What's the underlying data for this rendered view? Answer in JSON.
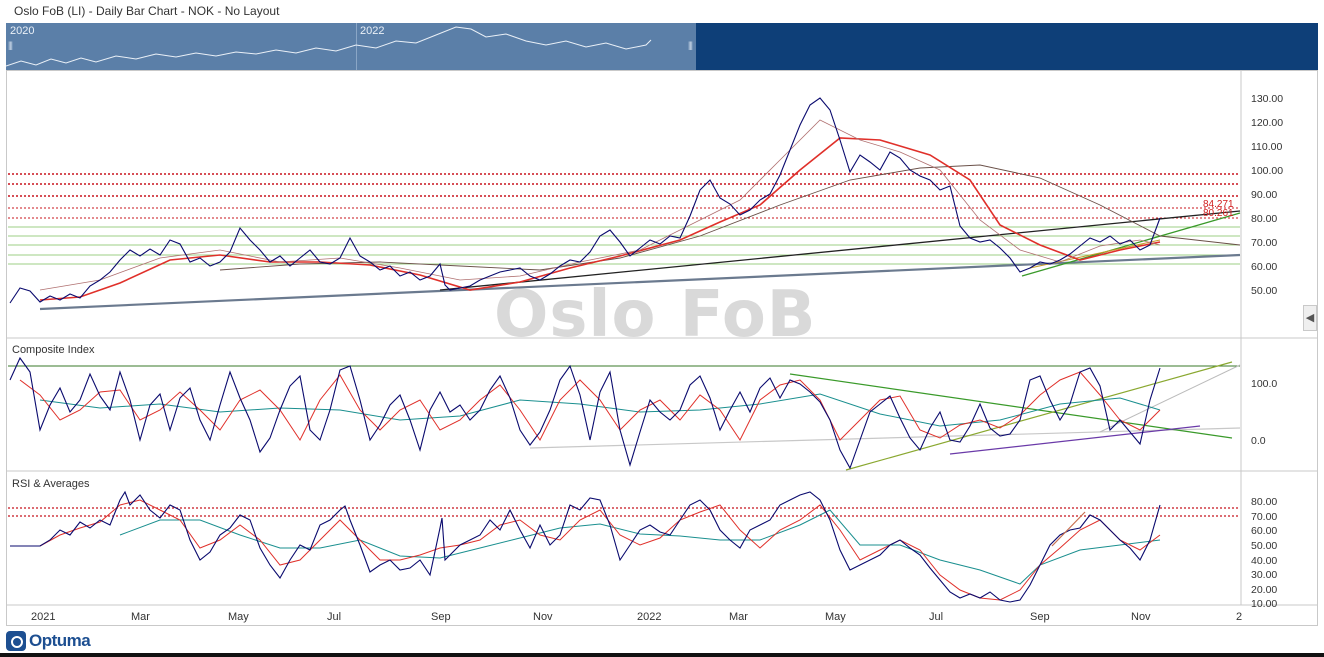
{
  "window": {
    "title": "Oslo FoB (LI) - Daily Bar Chart - NOK - No Layout"
  },
  "overview": {
    "year_labels": [
      "2020",
      "2022"
    ],
    "handle_glyph": "|||"
  },
  "watermark": "Oslo FoB",
  "collapse_glyph": "◀",
  "brand": {
    "name": "Optuma"
  },
  "colors": {
    "price": "#0a0a6e",
    "ma_red": "#e0302a",
    "ma_teal": "#1a8f8f",
    "trend_green": "#3a9a2a",
    "level_red": "#c8141e",
    "level_green": "#9ccf84",
    "overview_bg": "#0e3f78"
  },
  "panels": {
    "price": {
      "y_labels": [
        "130.00",
        "120.00",
        "110.00",
        "100.00",
        "90.00",
        "80.00",
        "70.00",
        "60.00",
        "50.00"
      ],
      "value_labels": [
        "84.271",
        "80.261"
      ]
    },
    "composite": {
      "title": "Composite Index",
      "y_labels": [
        "100.0",
        "0.0"
      ]
    },
    "rsi": {
      "title": "RSI & Averages",
      "y_labels": [
        "80.00",
        "70.00",
        "60.00",
        "50.00",
        "40.00",
        "30.00",
        "20.00",
        "10.00"
      ]
    }
  },
  "x_axis": {
    "labels": [
      "2021",
      "Mar",
      "May",
      "Jul",
      "Sep",
      "Nov",
      "2022",
      "Mar",
      "May",
      "Jul",
      "Sep",
      "Nov",
      "2"
    ]
  },
  "chart_data": [
    {
      "type": "line",
      "title": "Oslo FoB (LI)",
      "y_range": [
        40,
        135
      ],
      "x": [
        "2021",
        "Mar",
        "May",
        "Jul",
        "Sep",
        "Nov",
        "2022",
        "Mar",
        "May",
        "Jul",
        "Sep",
        "Nov"
      ],
      "series": [
        {
          "name": "",
          "values": [
            47,
            58,
            70,
            62,
            55,
            58,
            75,
            95,
            128,
            98,
            60,
            78
          ]
        }
      ],
      "annotations": {
        "horizontal_levels_red": [
          99,
          95,
          90,
          84.271,
          80.261
        ],
        "horizontal_levels_green": [
          77,
          70,
          68,
          65,
          62
        ]
      }
    },
    {
      "type": "line",
      "title": "Composite Index",
      "y_range": [
        -50,
        150
      ],
      "x": [
        "2021",
        "Mar",
        "May",
        "Jul",
        "Sep",
        "Nov",
        "2022",
        "Mar",
        "May",
        "Jul",
        "Sep",
        "Nov"
      ],
      "series": [
        {
          "name": "",
          "values": [
            120,
            40,
            80,
            20,
            110,
            30,
            90,
            60,
            110,
            -40,
            60,
            130
          ]
        }
      ]
    },
    {
      "type": "line",
      "title": "RSI & Averages",
      "y_range": [
        10,
        85
      ],
      "x": [
        "2021",
        "Mar",
        "May",
        "Jul",
        "Sep",
        "Nov",
        "2022",
        "Mar",
        "May",
        "Jul",
        "Sep",
        "Nov"
      ],
      "series": [
        {
          "name": "",
          "values": [
            50,
            78,
            35,
            70,
            38,
            68,
            60,
            75,
            80,
            40,
            15,
            75
          ]
        }
      ]
    }
  ]
}
